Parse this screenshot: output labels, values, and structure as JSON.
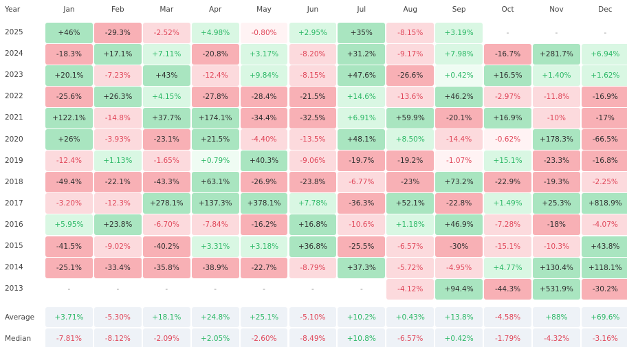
{
  "table": {
    "header": [
      "Year",
      "Jan",
      "Feb",
      "Mar",
      "Apr",
      "May",
      "Jun",
      "Jul",
      "Aug",
      "Sep",
      "Oct",
      "Nov",
      "Dec"
    ],
    "rows": [
      {
        "label": "2025",
        "cells": [
          "+46%",
          "-29.3%",
          "-2.52%",
          "+4.98%",
          "-0.80%",
          "+2.95%",
          "+35%",
          "-8.15%",
          "+3.19%",
          "-",
          "-",
          "-"
        ]
      },
      {
        "label": "2024",
        "cells": [
          "-18.3%",
          "+17.1%",
          "+7.11%",
          "-20.8%",
          "+3.17%",
          "-8.20%",
          "+31.2%",
          "-9.17%",
          "+7.98%",
          "-16.7%",
          "+281.7%",
          "+6.94%"
        ]
      },
      {
        "label": "2023",
        "cells": [
          "+20.1%",
          "-7.23%",
          "+43%",
          "-12.4%",
          "+9.84%",
          "-8.15%",
          "+47.6%",
          "-26.6%",
          "+0.42%",
          "+16.5%",
          "+1.40%",
          "+1.62%"
        ]
      },
      {
        "label": "2022",
        "cells": [
          "-25.6%",
          "+26.3%",
          "+4.15%",
          "-27.8%",
          "-28.4%",
          "-21.5%",
          "+14.6%",
          "-13.6%",
          "+46.2%",
          "-2.97%",
          "-11.8%",
          "-16.9%"
        ]
      },
      {
        "label": "2021",
        "cells": [
          "+122.1%",
          "-14.8%",
          "+37.7%",
          "+174.1%",
          "-34.4%",
          "-32.5%",
          "+6.91%",
          "+59.9%",
          "-20.1%",
          "+16.9%",
          "-10%",
          "-17%"
        ]
      },
      {
        "label": "2020",
        "cells": [
          "+26%",
          "-3.93%",
          "-23.1%",
          "+21.5%",
          "-4.40%",
          "-13.5%",
          "+48.1%",
          "+8.50%",
          "-14.4%",
          "-0.62%",
          "+178.3%",
          "-66.5%"
        ]
      },
      {
        "label": "2019",
        "cells": [
          "-12.4%",
          "+1.13%",
          "-1.65%",
          "+0.79%",
          "+40.3%",
          "-9.06%",
          "-19.7%",
          "-19.2%",
          "-1.07%",
          "+15.1%",
          "-23.3%",
          "-16.8%"
        ]
      },
      {
        "label": "2018",
        "cells": [
          "-49.4%",
          "-22.1%",
          "-43.3%",
          "+63.1%",
          "-26.9%",
          "-23.8%",
          "-6.77%",
          "-23%",
          "+73.2%",
          "-22.9%",
          "-19.3%",
          "-2.25%"
        ]
      },
      {
        "label": "2017",
        "cells": [
          "-3.20%",
          "-12.3%",
          "+278.1%",
          "+137.3%",
          "+378.1%",
          "+7.78%",
          "-36.3%",
          "+52.1%",
          "-22.8%",
          "+1.49%",
          "+25.3%",
          "+818.9%"
        ]
      },
      {
        "label": "2016",
        "cells": [
          "+5.95%",
          "+23.8%",
          "-6.70%",
          "-7.84%",
          "-16.2%",
          "+16.8%",
          "-10.6%",
          "+1.18%",
          "+46.9%",
          "-7.28%",
          "-18%",
          "-4.07%"
        ]
      },
      {
        "label": "2015",
        "cells": [
          "-41.5%",
          "-9.02%",
          "-40.2%",
          "+3.31%",
          "+3.18%",
          "+36.8%",
          "-25.5%",
          "-6.57%",
          "-30%",
          "-15.1%",
          "-10.3%",
          "+43.8%"
        ]
      },
      {
        "label": "2014",
        "cells": [
          "-25.1%",
          "-33.4%",
          "-35.8%",
          "-38.9%",
          "-22.7%",
          "-8.79%",
          "+37.3%",
          "-5.72%",
          "-4.95%",
          "+4.77%",
          "+130.4%",
          "+118.1%"
        ]
      },
      {
        "label": "2013",
        "cells": [
          "-",
          "-",
          "-",
          "-",
          "-",
          "-",
          "-",
          "-4.12%",
          "+94.4%",
          "-44.3%",
          "+531.9%",
          "-30.2%"
        ]
      }
    ],
    "summary": [
      {
        "label": "Average",
        "cells": [
          "+3.71%",
          "-5.30%",
          "+18.1%",
          "+24.8%",
          "+25.1%",
          "-5.10%",
          "+10.2%",
          "+0.43%",
          "+13.8%",
          "-4.58%",
          "+88%",
          "+69.6%"
        ]
      },
      {
        "label": "Median",
        "cells": [
          "-7.81%",
          "-8.12%",
          "-2.09%",
          "+2.05%",
          "-2.60%",
          "-8.49%",
          "+10.8%",
          "-6.57%",
          "+0.42%",
          "-1.79%",
          "-4.32%",
          "-3.16%"
        ]
      }
    ]
  }
}
